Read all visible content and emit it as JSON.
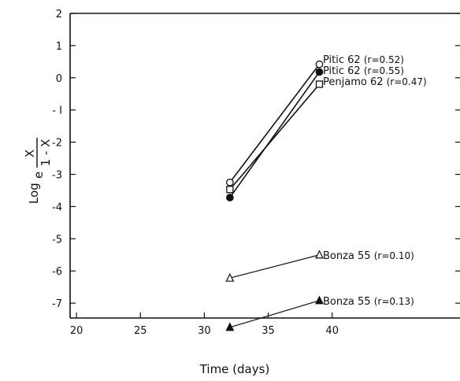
{
  "chart_data": {
    "type": "line",
    "xlabel": "Time (days)",
    "ylabel": {
      "prefix": "Log",
      "subscript": "e",
      "numerator": "X",
      "denominator": "1 - X"
    },
    "xlim": [
      19.5,
      50
    ],
    "ylim": [
      -7.5,
      2
    ],
    "xticks": [
      20,
      25,
      30,
      35,
      40
    ],
    "xtick_labels": [
      "20",
      "25",
      "30",
      "35",
      "40"
    ],
    "yticks": [
      2,
      1,
      0,
      -1,
      -2,
      -3,
      -4,
      -5,
      -6,
      -7
    ],
    "ytick_labels": [
      "2",
      "1",
      "0",
      "- I",
      "-2",
      "-3",
      "-4",
      "-5",
      "-6",
      "-7"
    ],
    "grid": false,
    "series": [
      {
        "name": "Pitic 62",
        "r_text": "(r=0.52)",
        "marker": "circle-open",
        "x": [
          32,
          39
        ],
        "y": [
          -3.25,
          0.42
        ]
      },
      {
        "name": "Pitic 62",
        "r_text": "(r=0.55)",
        "marker": "circle-filled",
        "x": [
          32,
          39
        ],
        "y": [
          -3.72,
          0.18
        ]
      },
      {
        "name": "Penjamo 62",
        "r_text": "(r=0.47)",
        "marker": "square-open",
        "x": [
          32,
          39
        ],
        "y": [
          -3.47,
          -0.2
        ]
      },
      {
        "name": "Bonza 55",
        "r_text": "(r=0.10)",
        "marker": "triangle-open",
        "x": [
          32,
          39
        ],
        "y": [
          -6.22,
          -5.5
        ]
      },
      {
        "name": "Bonza 55",
        "r_text": "(r=0.13)",
        "marker": "triangle-filled",
        "x": [
          32,
          39
        ],
        "y": [
          -7.75,
          -6.92
        ]
      }
    ]
  }
}
